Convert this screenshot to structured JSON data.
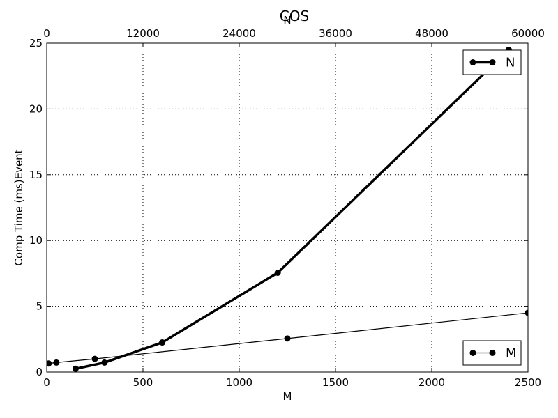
{
  "chart_data": {
    "type": "line",
    "title": "COS",
    "xlabel": "M",
    "x2label": "N",
    "ylabel": "Comp Time (ms)Event",
    "xlim": [
      0,
      2500
    ],
    "x2lim": [
      0,
      60000
    ],
    "ylim": [
      0,
      25
    ],
    "x_ticks": [
      0,
      500,
      1000,
      1500,
      2000,
      2500
    ],
    "x2_ticks": [
      0,
      12000,
      24000,
      36000,
      48000,
      60000
    ],
    "y_ticks": [
      0,
      5,
      10,
      15,
      20,
      25
    ],
    "grid": true,
    "series": [
      {
        "name": "N",
        "axis": "top",
        "x": [
          3600,
          7200,
          14400,
          28800,
          57600
        ],
        "y": [
          0.25,
          0.72,
          2.25,
          7.55,
          24.5
        ],
        "style": "thick"
      },
      {
        "name": "M",
        "axis": "bottom",
        "x": [
          10,
          50,
          250,
          1250,
          2500
        ],
        "y": [
          0.65,
          0.72,
          1.0,
          2.55,
          4.5
        ],
        "style": "thin"
      }
    ],
    "legends": [
      {
        "series": "N",
        "placement": "top-right"
      },
      {
        "series": "M",
        "placement": "bottom-right"
      }
    ]
  }
}
